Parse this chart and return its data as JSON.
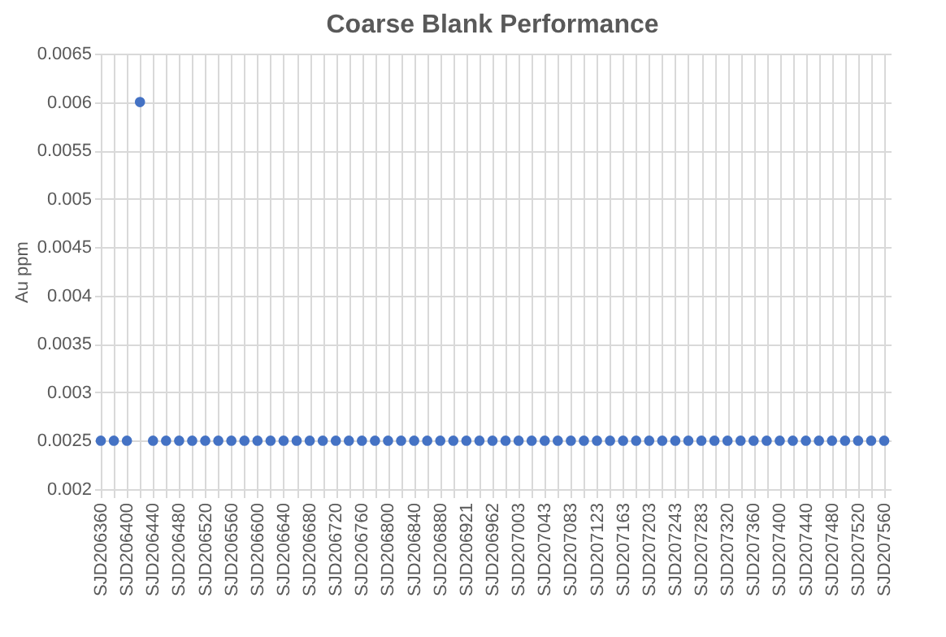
{
  "chart_data": {
    "type": "scatter",
    "title": "Coarse Blank Performance",
    "ylabel": "Au ppm",
    "categories": [
      "SJD206360",
      null,
      "SJD206400",
      null,
      "SJD206440",
      null,
      "SJD206480",
      null,
      "SJD206520",
      null,
      "SJD206560",
      null,
      "SJD206600",
      null,
      "SJD206640",
      null,
      "SJD206680",
      null,
      "SJD206720",
      null,
      "SJD206760",
      null,
      "SJD206800",
      null,
      "SJD206840",
      null,
      "SJD206880",
      null,
      "SJD206921",
      null,
      "SJD206962",
      null,
      "SJD207003",
      null,
      "SJD207043",
      null,
      "SJD207083",
      null,
      "SJD207123",
      null,
      "SJD207163",
      null,
      "SJD207203",
      null,
      "SJD207243",
      null,
      "SJD207283",
      null,
      "SJD207320",
      null,
      "SJD207360",
      null,
      "SJD207400",
      null,
      "SJD207440",
      null,
      "SJD207480",
      null,
      "SJD207520",
      null,
      "SJD207560"
    ],
    "series": [
      {
        "color": "#4472c4",
        "values": [
          0.0025,
          0.0025,
          0.0025,
          0.006,
          0.0025,
          0.0025,
          0.0025,
          0.0025,
          0.0025,
          0.0025,
          0.0025,
          0.0025,
          0.0025,
          0.0025,
          0.0025,
          0.0025,
          0.0025,
          0.0025,
          0.0025,
          0.0025,
          0.0025,
          0.0025,
          0.0025,
          0.0025,
          0.0025,
          0.0025,
          0.0025,
          0.0025,
          0.0025,
          0.0025,
          0.0025,
          0.0025,
          0.0025,
          0.0025,
          0.0025,
          0.0025,
          0.0025,
          0.0025,
          0.0025,
          0.0025,
          0.0025,
          0.0025,
          0.0025,
          0.0025,
          0.0025,
          0.0025,
          0.0025,
          0.0025,
          0.0025,
          0.0025,
          0.0025,
          0.0025,
          0.0025,
          0.0025,
          0.0025,
          0.0025,
          0.0025,
          0.0025,
          0.0025,
          0.0025,
          0.0025
        ]
      }
    ],
    "ylim": [
      0.002,
      0.0065
    ],
    "yticks": [
      0.002,
      0.0025,
      0.003,
      0.0035,
      0.004,
      0.0045,
      0.005,
      0.0055,
      0.006,
      0.0065
    ],
    "grid": true
  }
}
